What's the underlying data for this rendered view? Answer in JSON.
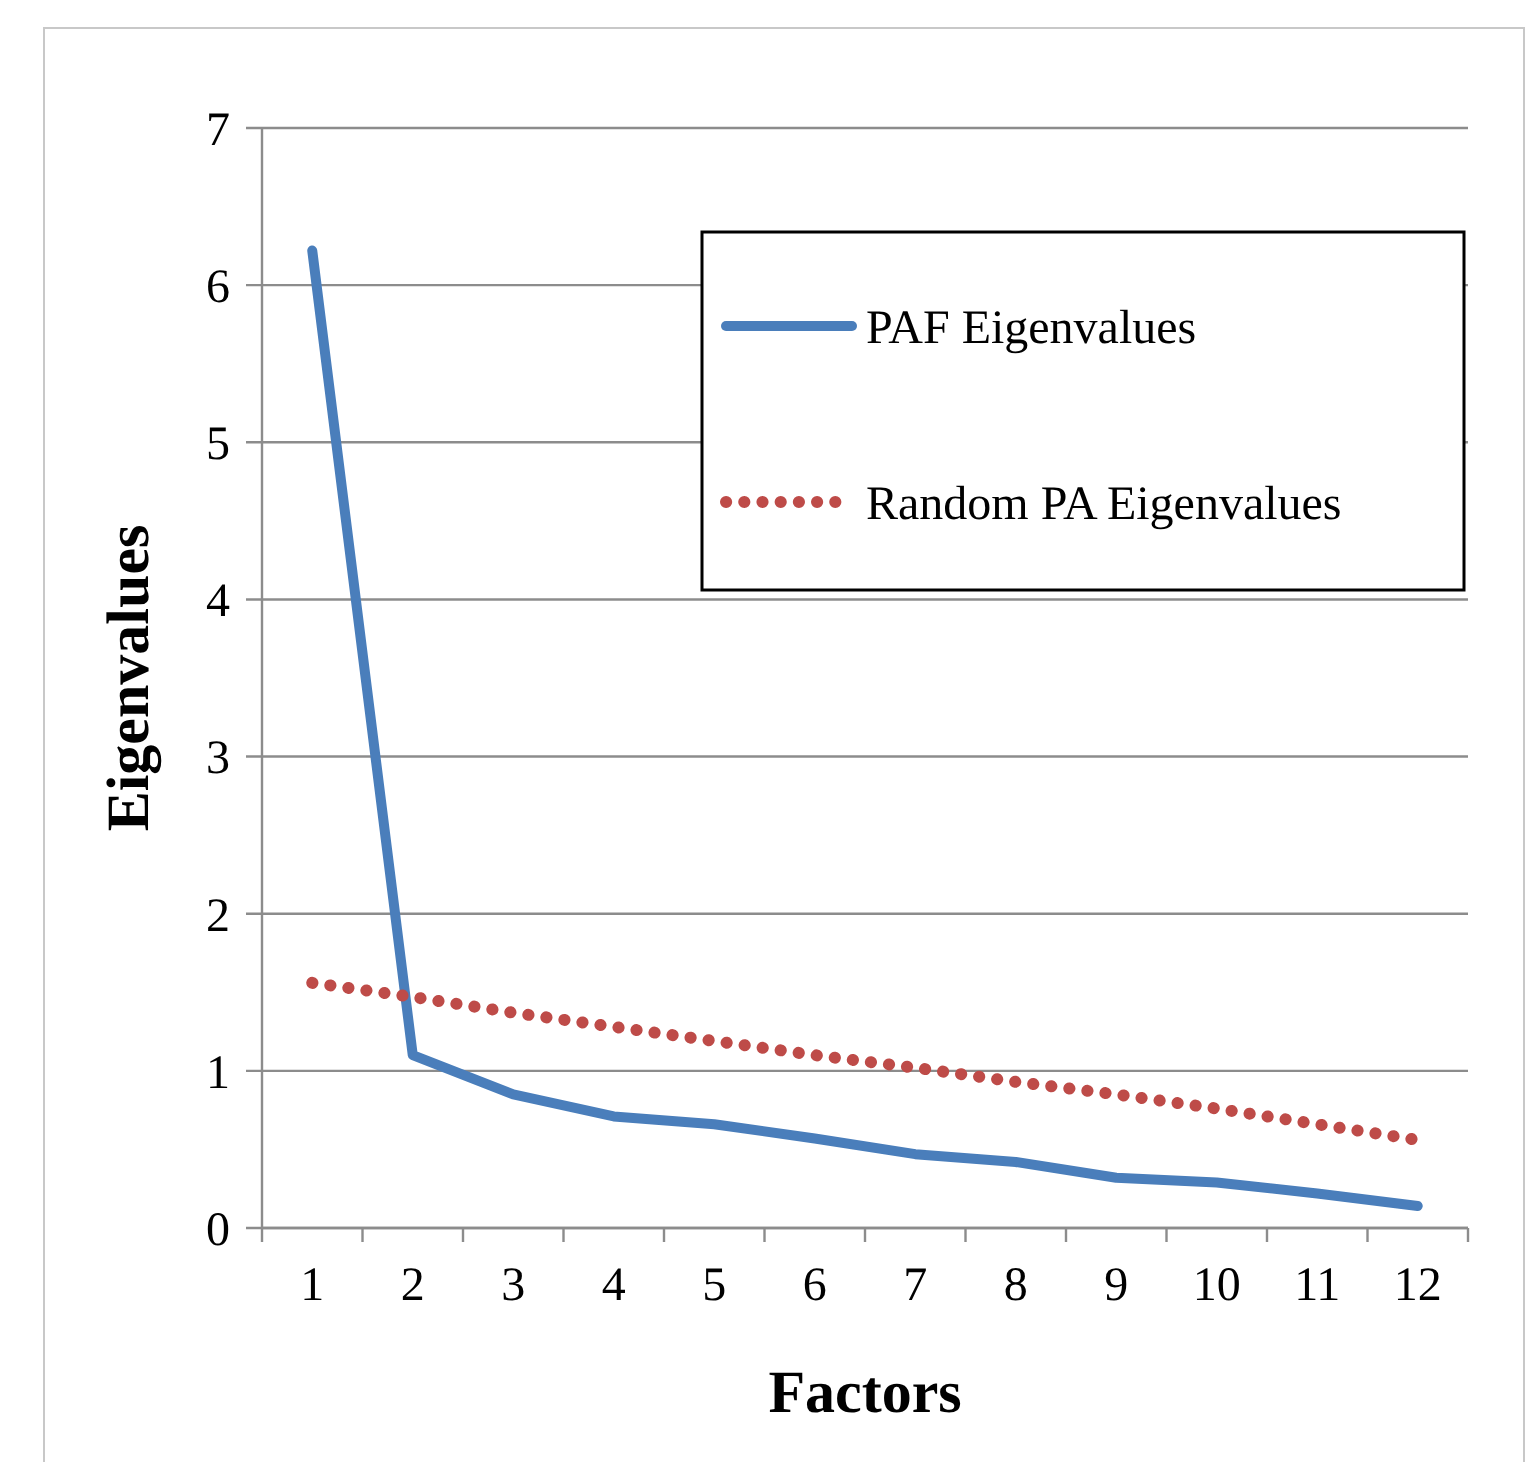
{
  "chart_data": {
    "type": "line",
    "xlabel": "Factors",
    "ylabel": "Eigenvalues",
    "categories": [
      "1",
      "2",
      "3",
      "4",
      "5",
      "6",
      "7",
      "8",
      "9",
      "10",
      "11",
      "12"
    ],
    "series": [
      {
        "name": "PAF Eigenvalues",
        "color": "#4a7ebb",
        "line_style": "solid",
        "values": [
          6.22,
          1.1,
          0.85,
          0.71,
          0.66,
          0.57,
          0.47,
          0.42,
          0.32,
          0.29,
          0.22,
          0.14
        ]
      },
      {
        "name": "Random PA Eigenvalues",
        "color": "#be4b48",
        "line_style": "dotted",
        "values": [
          1.56,
          1.47,
          1.37,
          1.28,
          1.19,
          1.1,
          1.02,
          0.93,
          0.85,
          0.76,
          0.66,
          0.56
        ]
      }
    ],
    "ylim": [
      0,
      7
    ],
    "yticks": [
      0,
      1,
      2,
      3,
      4,
      5,
      6,
      7
    ],
    "grid": "y",
    "legend": "top right",
    "marker": "none"
  }
}
